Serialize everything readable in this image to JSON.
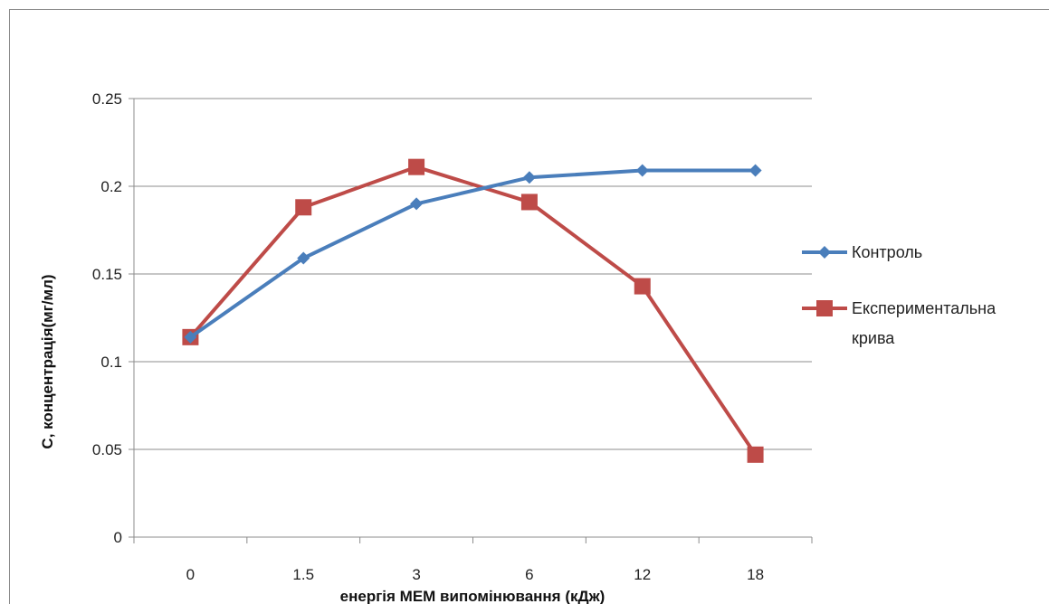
{
  "chart_data": {
    "type": "line",
    "categories": [
      "0",
      "1.5",
      "3",
      "6",
      "12",
      "18"
    ],
    "series": [
      {
        "name": "Контроль",
        "values": [
          0.114,
          0.159,
          0.19,
          0.205,
          0.209,
          0.209
        ],
        "color": "#4a7ebb",
        "marker": "diamond"
      },
      {
        "name": "Експериментальна крива",
        "legend_lines": [
          "Експериментальна",
          "крива"
        ],
        "values": [
          0.114,
          0.188,
          0.211,
          0.191,
          0.143,
          0.047
        ],
        "color": "#be4b48",
        "marker": "square"
      }
    ],
    "xlabel": "енергія МЕМ випомінювання  (кДж)",
    "ylabel": "С, концентрація(мг/мл)",
    "ylim": [
      0,
      0.25
    ],
    "yticks": [
      "0",
      "0.05",
      "0.1",
      "0.15",
      "0.2",
      "0.25"
    ],
    "grid": "horizontal",
    "legend_position": "right"
  }
}
